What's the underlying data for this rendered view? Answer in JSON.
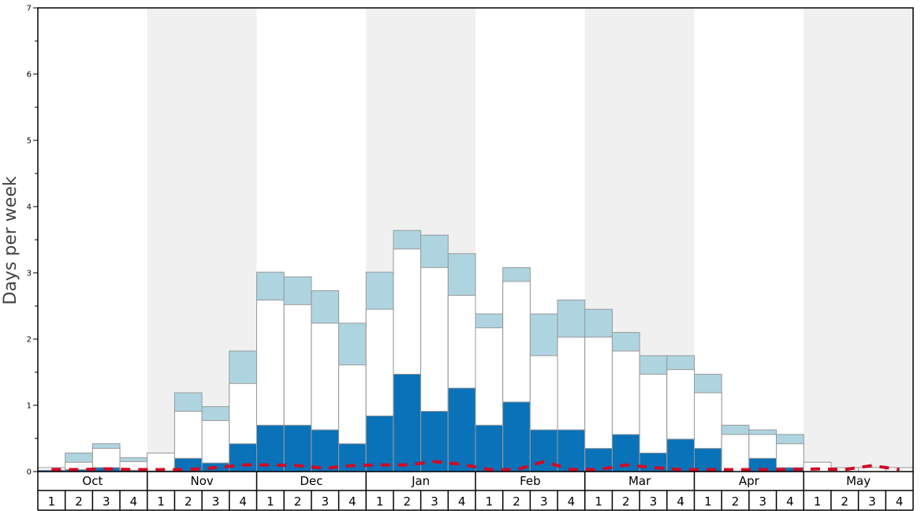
{
  "chart_data": {
    "type": "bar",
    "ylabel": "Days per week",
    "ylim": [
      0,
      7
    ],
    "y_ticks": [
      "0",
      "1",
      "2",
      "3",
      "4",
      "5",
      "6",
      "7"
    ],
    "months": [
      "Oct",
      "Nov",
      "Dec",
      "Jan",
      "Feb",
      "Mar",
      "Apr",
      "May"
    ],
    "week_labels": [
      "1",
      "2",
      "3",
      "4"
    ],
    "colors": {
      "heavy": "#0a72b8",
      "light": "#ffffff",
      "top": "#aed4e0",
      "line": "#d10a24",
      "shade": "#f0f0f0",
      "border": "#999999"
    },
    "series": [
      {
        "values": [
          0.02,
          0.03,
          0.06,
          0.02,
          0.01,
          0.2,
          0.13,
          0.42,
          0.7,
          0.7,
          0.63,
          0.42,
          0.84,
          1.47,
          0.91,
          1.26,
          0.7,
          1.05,
          0.63,
          0.63,
          0.35,
          0.56,
          0.28,
          0.49,
          0.35,
          0.0,
          0.2,
          0.06,
          0.0,
          0.0,
          0.0,
          0.0
        ]
      },
      {
        "values": [
          0.06,
          0.14,
          0.35,
          0.15,
          0.28,
          0.91,
          0.77,
          1.33,
          2.59,
          2.52,
          2.24,
          1.61,
          2.45,
          3.36,
          3.08,
          2.66,
          2.17,
          2.87,
          1.75,
          2.03,
          2.03,
          1.82,
          1.47,
          1.54,
          1.19,
          0.56,
          0.56,
          0.42,
          0.14,
          0.06,
          0.06,
          0.06
        ]
      },
      {
        "values": [
          0.06,
          0.28,
          0.42,
          0.21,
          0.28,
          1.19,
          0.98,
          1.82,
          3.01,
          2.94,
          2.73,
          2.24,
          3.01,
          3.64,
          3.57,
          3.29,
          2.38,
          3.08,
          2.38,
          2.59,
          2.45,
          2.1,
          1.75,
          1.75,
          1.47,
          0.7,
          0.63,
          0.56,
          0.14,
          0.06,
          0.06,
          0.06
        ]
      },
      {
        "values": [
          0.03,
          0.03,
          0.04,
          0.03,
          0.03,
          0.03,
          0.06,
          0.1,
          0.1,
          0.09,
          0.05,
          0.09,
          0.1,
          0.1,
          0.15,
          0.11,
          0.03,
          0.03,
          0.15,
          0.03,
          0.03,
          0.1,
          0.06,
          0.03,
          0.03,
          0.03,
          0.03,
          0.03,
          0.04,
          0.03,
          0.09,
          0.03
        ]
      }
    ]
  }
}
